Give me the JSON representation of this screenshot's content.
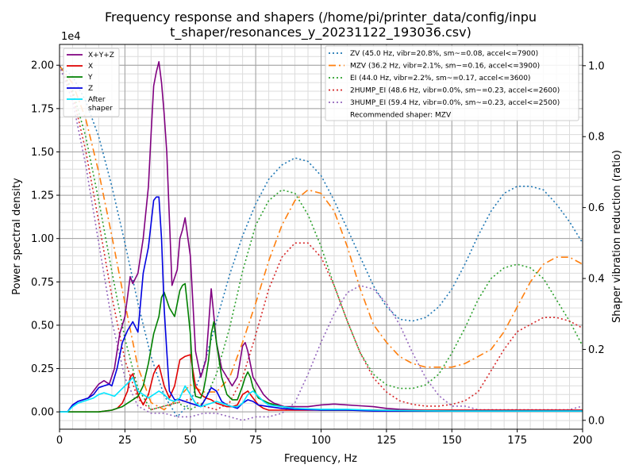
{
  "chart_data": {
    "type": "line",
    "title_line1": "Frequency response and shapers (/home/pi/printer_data/config/inpu",
    "title_line2": "t_shaper/resonances_y_20231122_193036.csv)",
    "xlabel": "Frequency, Hz",
    "ylabel": "Power spectral density",
    "y2label": "Shaper vibration reduction (ratio)",
    "y_scale_note": "1e4",
    "xlim": [
      0,
      200
    ],
    "ylim": [
      -0.1,
      2.12
    ],
    "y2lim": [
      -0.025,
      1.06
    ],
    "x_ticks": [
      0,
      25,
      50,
      75,
      100,
      125,
      150,
      175,
      200
    ],
    "x_tick_labels": [
      "0",
      "25",
      "50",
      "75",
      "100",
      "125",
      "150",
      "175",
      "200"
    ],
    "y_ticks": [
      0,
      0.25,
      0.5,
      0.75,
      1.0,
      1.25,
      1.5,
      1.75,
      2.0
    ],
    "y_tick_labels": [
      "0.00",
      "0.25",
      "0.50",
      "0.75",
      "1.00",
      "1.25",
      "1.50",
      "1.75",
      "2.00"
    ],
    "y2_ticks": [
      0,
      0.2,
      0.4,
      0.6,
      0.8,
      1.0
    ],
    "y2_tick_labels": [
      "0.0",
      "0.2",
      "0.4",
      "0.6",
      "0.8",
      "1.0"
    ],
    "grid": true,
    "psd_series": [
      {
        "name": "X+Y+Z",
        "color": "#800080",
        "dash": "none",
        "x": [
          0,
          3,
          5,
          7,
          9,
          11,
          13,
          15,
          17,
          19,
          21,
          23,
          25,
          27,
          28,
          30,
          32,
          34,
          35,
          36,
          37,
          38,
          39,
          40,
          41,
          43,
          45,
          46,
          47,
          48,
          50,
          52,
          54,
          56,
          57,
          58,
          60,
          62,
          64,
          66,
          68,
          70,
          71,
          72,
          74,
          76,
          78,
          80,
          82,
          84,
          86,
          88,
          90,
          95,
          100,
          105,
          110,
          115,
          120,
          125,
          130,
          140,
          150,
          160,
          170,
          180,
          190,
          200
        ],
        "y": [
          0,
          0,
          0.04,
          0.06,
          0.07,
          0.08,
          0.12,
          0.16,
          0.18,
          0.16,
          0.25,
          0.45,
          0.55,
          0.78,
          0.74,
          0.8,
          1.0,
          1.3,
          1.6,
          1.88,
          1.96,
          2.02,
          1.9,
          1.72,
          1.5,
          0.73,
          0.82,
          1.0,
          1.05,
          1.12,
          0.9,
          0.35,
          0.2,
          0.3,
          0.5,
          0.71,
          0.4,
          0.25,
          0.2,
          0.15,
          0.2,
          0.38,
          0.4,
          0.35,
          0.2,
          0.15,
          0.1,
          0.07,
          0.05,
          0.04,
          0.03,
          0.03,
          0.03,
          0.03,
          0.04,
          0.045,
          0.04,
          0.035,
          0.03,
          0.02,
          0.015,
          0.01,
          0.01,
          0.01,
          0.01,
          0.01,
          0.01,
          0.01
        ]
      },
      {
        "name": "X",
        "color": "#e00000",
        "dash": "none",
        "x": [
          0,
          10,
          15,
          20,
          22,
          24,
          26,
          27,
          28,
          30,
          32,
          34,
          36,
          37,
          38,
          40,
          42,
          44,
          46,
          48,
          50,
          52,
          54,
          56,
          58,
          60,
          62,
          64,
          66,
          68,
          70,
          72,
          74,
          76,
          78,
          80,
          85,
          90,
          100,
          110,
          120,
          150,
          200
        ],
        "y": [
          0,
          0,
          0,
          0.01,
          0.02,
          0.05,
          0.12,
          0.2,
          0.22,
          0.1,
          0.04,
          0.1,
          0.22,
          0.25,
          0.27,
          0.15,
          0.08,
          0.15,
          0.3,
          0.32,
          0.33,
          0.15,
          0.1,
          0.08,
          0.07,
          0.05,
          0.04,
          0.03,
          0.03,
          0.04,
          0.1,
          0.12,
          0.08,
          0.04,
          0.02,
          0.01,
          0.01,
          0.01,
          0.01,
          0.01,
          0.01,
          0.01,
          0.01
        ]
      },
      {
        "name": "Y",
        "color": "#008000",
        "dash": "none",
        "x": [
          0,
          10,
          15,
          20,
          22,
          24,
          26,
          28,
          30,
          32,
          34,
          36,
          38,
          39,
          40,
          42,
          44,
          46,
          47,
          48,
          49,
          50,
          51,
          52,
          54,
          55,
          56,
          57,
          58,
          59,
          60,
          62,
          64,
          66,
          68,
          70,
          71,
          72,
          73,
          74,
          76,
          80,
          85,
          90,
          95,
          100,
          110,
          120,
          130,
          150,
          200
        ],
        "y": [
          0,
          0,
          0,
          0.01,
          0.02,
          0.03,
          0.05,
          0.07,
          0.09,
          0.15,
          0.28,
          0.45,
          0.55,
          0.66,
          0.69,
          0.6,
          0.55,
          0.7,
          0.73,
          0.74,
          0.6,
          0.45,
          0.2,
          0.09,
          0.08,
          0.12,
          0.2,
          0.3,
          0.45,
          0.52,
          0.4,
          0.2,
          0.1,
          0.07,
          0.07,
          0.15,
          0.2,
          0.23,
          0.2,
          0.14,
          0.08,
          0.05,
          0.03,
          0.02,
          0.015,
          0.01,
          0.01,
          0.01,
          0.005,
          0.005,
          0.005
        ]
      },
      {
        "name": "Z",
        "color": "#0000e0",
        "dash": "none",
        "x": [
          0,
          3,
          5,
          7,
          9,
          11,
          13,
          15,
          17,
          19,
          20,
          22,
          24,
          26,
          28,
          30,
          32,
          34,
          36,
          37,
          38,
          39,
          40,
          41,
          42,
          44,
          46,
          48,
          50,
          52,
          54,
          56,
          58,
          60,
          62,
          64,
          66,
          68,
          70,
          72,
          74,
          76,
          80,
          85,
          90,
          100,
          110,
          120,
          150,
          200
        ],
        "y": [
          0,
          0,
          0.04,
          0.06,
          0.07,
          0.08,
          0.1,
          0.14,
          0.15,
          0.16,
          0.15,
          0.25,
          0.4,
          0.47,
          0.52,
          0.46,
          0.8,
          0.95,
          1.22,
          1.24,
          1.24,
          1.0,
          0.6,
          0.35,
          0.12,
          0.07,
          0.07,
          0.06,
          0.05,
          0.04,
          0.03,
          0.08,
          0.14,
          0.12,
          0.06,
          0.04,
          0.03,
          0.02,
          0.05,
          0.07,
          0.06,
          0.04,
          0.03,
          0.02,
          0.015,
          0.01,
          0.01,
          0.005,
          0.005,
          0.005
        ]
      },
      {
        "name": "After\nshaper",
        "color": "#00e5ff",
        "dash": "none",
        "x": [
          0,
          3,
          5,
          7,
          9,
          11,
          13,
          15,
          17,
          19,
          21,
          23,
          25,
          27,
          28,
          30,
          32,
          34,
          36,
          38,
          40,
          42,
          44,
          46,
          48,
          50,
          52,
          54,
          56,
          58,
          60,
          62,
          64,
          66,
          68,
          70,
          72,
          74,
          76,
          78,
          80,
          85,
          90,
          100,
          110,
          120,
          150,
          200
        ],
        "y": [
          0,
          0,
          0.03,
          0.05,
          0.06,
          0.07,
          0.08,
          0.1,
          0.11,
          0.1,
          0.09,
          0.12,
          0.15,
          0.18,
          0.2,
          0.12,
          0.1,
          0.08,
          0.1,
          0.12,
          0.1,
          0.07,
          0.06,
          0.08,
          0.15,
          0.1,
          0.05,
          0.03,
          0.04,
          0.05,
          0.06,
          0.05,
          0.04,
          0.03,
          0.03,
          0.05,
          0.1,
          0.12,
          0.09,
          0.06,
          0.04,
          0.03,
          0.02,
          0.015,
          0.015,
          0.01,
          0.005,
          0.005
        ]
      }
    ],
    "shaper_series": [
      {
        "name": "ZV (45.0 Hz, vibr=20.8%, sm~=0.08, accel<=7900)",
        "color": "#1f77b4",
        "dash": "2,3",
        "x": [
          0,
          5,
          10,
          15,
          20,
          25,
          30,
          35,
          40,
          45,
          50,
          55,
          60,
          65,
          70,
          75,
          80,
          85,
          90,
          95,
          100,
          105,
          110,
          115,
          120,
          125,
          130,
          135,
          140,
          145,
          150,
          155,
          160,
          165,
          170,
          175,
          180,
          185,
          190,
          195,
          200
        ],
        "y": [
          1.0,
          0.97,
          0.9,
          0.8,
          0.66,
          0.5,
          0.33,
          0.18,
          0.07,
          0.01,
          0.05,
          0.15,
          0.28,
          0.41,
          0.52,
          0.61,
          0.68,
          0.72,
          0.74,
          0.73,
          0.69,
          0.62,
          0.54,
          0.46,
          0.38,
          0.32,
          0.285,
          0.28,
          0.29,
          0.32,
          0.37,
          0.44,
          0.52,
          0.59,
          0.64,
          0.66,
          0.66,
          0.65,
          0.61,
          0.56,
          0.5
        ]
      },
      {
        "name": "MZV (36.2 Hz, vibr=2.1%, sm~=0.16, accel<=3900)",
        "color": "#ff7f0e",
        "dash": "9,4,2,4",
        "x": [
          0,
          5,
          10,
          15,
          20,
          25,
          30,
          35,
          40,
          45,
          50,
          55,
          60,
          65,
          70,
          75,
          80,
          85,
          90,
          95,
          100,
          105,
          110,
          115,
          120,
          125,
          130,
          135,
          140,
          145,
          150,
          155,
          160,
          165,
          170,
          175,
          180,
          185,
          190,
          195,
          200
        ],
        "y": [
          1.0,
          0.95,
          0.85,
          0.7,
          0.52,
          0.33,
          0.15,
          0.05,
          0.03,
          0.06,
          0.1,
          0.08,
          0.08,
          0.12,
          0.22,
          0.33,
          0.45,
          0.55,
          0.62,
          0.65,
          0.64,
          0.59,
          0.49,
          0.37,
          0.27,
          0.22,
          0.18,
          0.16,
          0.15,
          0.15,
          0.15,
          0.16,
          0.18,
          0.2,
          0.25,
          0.32,
          0.39,
          0.44,
          0.46,
          0.46,
          0.44
        ]
      },
      {
        "name": "EI (44.0 Hz, vibr=2.2%, sm~=0.17, accel<=3600)",
        "color": "#2ca02c",
        "dash": "2,3",
        "x": [
          0,
          5,
          10,
          15,
          20,
          25,
          30,
          35,
          40,
          45,
          50,
          55,
          60,
          65,
          70,
          75,
          80,
          85,
          90,
          95,
          100,
          105,
          110,
          115,
          120,
          125,
          130,
          135,
          140,
          145,
          150,
          155,
          160,
          165,
          170,
          175,
          180,
          185,
          190,
          195,
          200
        ],
        "y": [
          1.0,
          0.93,
          0.8,
          0.62,
          0.42,
          0.23,
          0.09,
          0.03,
          0.04,
          0.05,
          0.03,
          0.05,
          0.13,
          0.26,
          0.42,
          0.55,
          0.62,
          0.65,
          0.64,
          0.58,
          0.49,
          0.38,
          0.28,
          0.19,
          0.13,
          0.1,
          0.09,
          0.09,
          0.1,
          0.13,
          0.19,
          0.26,
          0.34,
          0.4,
          0.43,
          0.44,
          0.43,
          0.4,
          0.34,
          0.28,
          0.21
        ]
      },
      {
        "name": "2HUMP_EI (48.6 Hz, vibr=0.0%, sm~=0.23, accel<=2600)",
        "color": "#d62728",
        "dash": "2,3",
        "x": [
          0,
          5,
          10,
          15,
          20,
          25,
          30,
          35,
          40,
          45,
          50,
          55,
          60,
          65,
          70,
          75,
          80,
          85,
          90,
          95,
          100,
          105,
          110,
          115,
          120,
          125,
          130,
          135,
          140,
          145,
          150,
          155,
          160,
          165,
          170,
          175,
          180,
          185,
          190,
          195,
          200
        ],
        "y": [
          1.0,
          0.92,
          0.76,
          0.56,
          0.35,
          0.17,
          0.06,
          0.03,
          0.04,
          0.05,
          0.06,
          0.04,
          0.03,
          0.05,
          0.12,
          0.24,
          0.37,
          0.46,
          0.5,
          0.5,
          0.46,
          0.38,
          0.28,
          0.19,
          0.12,
          0.08,
          0.055,
          0.045,
          0.04,
          0.04,
          0.045,
          0.055,
          0.08,
          0.14,
          0.2,
          0.25,
          0.27,
          0.29,
          0.29,
          0.28,
          0.26
        ]
      },
      {
        "name": "3HUMP_EI (59.4 Hz, vibr=0.0%, sm~=0.23, accel<=2500)",
        "color": "#9467bd",
        "dash": "2,3",
        "x": [
          0,
          5,
          10,
          15,
          20,
          25,
          30,
          35,
          40,
          45,
          50,
          55,
          60,
          65,
          70,
          75,
          80,
          85,
          90,
          95,
          100,
          105,
          110,
          115,
          120,
          125,
          130,
          135,
          140,
          145,
          150,
          155,
          160,
          165,
          170,
          175,
          180,
          185,
          190,
          195,
          200
        ],
        "y": [
          1.0,
          0.9,
          0.72,
          0.5,
          0.28,
          0.12,
          0.04,
          0.02,
          0.02,
          0.01,
          0.01,
          0.02,
          0.02,
          0.01,
          0.0,
          0.01,
          0.01,
          0.02,
          0.05,
          0.13,
          0.22,
          0.3,
          0.36,
          0.38,
          0.37,
          0.33,
          0.27,
          0.19,
          0.12,
          0.07,
          0.04,
          0.04,
          0.03,
          0.03,
          0.03,
          0.03,
          0.03,
          0.03,
          0.03,
          0.03,
          0.04
        ]
      }
    ],
    "recommended_label": "Recommended shaper: MZV",
    "legend_left_position": "top-left",
    "legend_right_position": "top-right"
  }
}
